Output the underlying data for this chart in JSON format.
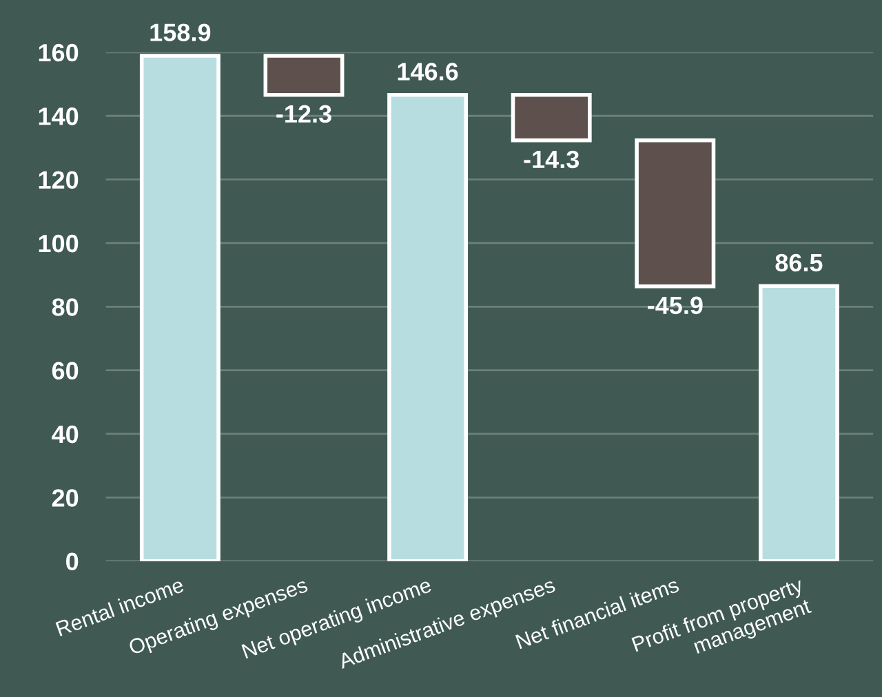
{
  "chart_data": {
    "type": "bar",
    "categories": [
      "Rental income",
      "Operating expenses",
      "Net operating income",
      "Administrative expenses",
      "Net financial items",
      "Profit from property\nmanagement"
    ],
    "values": [
      158.9,
      -12.3,
      146.6,
      -14.3,
      -45.9,
      86.5
    ],
    "base": [
      0,
      158.9,
      0,
      146.6,
      132.3,
      0
    ],
    "colors": [
      "#b8dde0",
      "#5e504c",
      "#b8dde0",
      "#5e504c",
      "#5e504c",
      "#b8dde0"
    ],
    "ylim": [
      0,
      160
    ],
    "yticks": [
      0,
      20,
      40,
      60,
      80,
      100,
      120,
      140,
      160
    ],
    "grid": "y",
    "data_labels": true
  }
}
